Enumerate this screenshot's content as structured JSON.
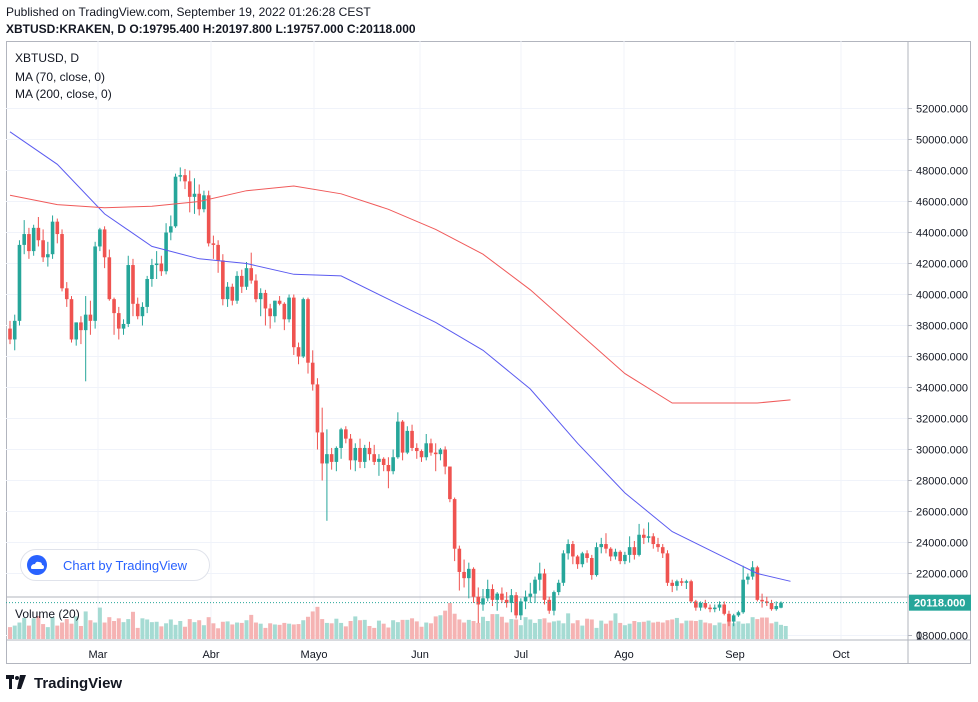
{
  "header": {
    "published": "Published on TradingView.com, September 19, 2022 01:26:28 CEST",
    "ohlc": "XBTUSD:KRAKEN, D O:19795.400 H:20197.800 L:19757.000 C:20118.000"
  },
  "legend": {
    "symbol": "XBTUSD, D",
    "ma70": "MA (70, close, 0)",
    "ma200": "MA (200, close, 0)",
    "volume": "Volume (20)"
  },
  "badge": {
    "label": "Chart by TradingView",
    "icon": "tradingview-cloud-icon"
  },
  "footer": {
    "brand": "TradingView",
    "icon": "tradingview-logo-icon"
  },
  "colors": {
    "up": "#26a69a",
    "down": "#ef5350",
    "ma70": "#5b5bf0",
    "ma200": "#f05a5a",
    "up_volume": "#a5dbd3",
    "down_volume": "#f5b3b3",
    "last_price": "#26a69a",
    "grid": "#f0f3fa"
  },
  "chart_data": {
    "type": "candlestick",
    "ylim": [
      17000,
      52500
    ],
    "y_ticks": [
      "52000.000",
      "50000.000",
      "48000.000",
      "46000.000",
      "44000.000",
      "42000.000",
      "40000.000",
      "38000.000",
      "36000.000",
      "34000.000",
      "32000.000",
      "30000.000",
      "28000.000",
      "26000.000",
      "24000.000",
      "22000.000",
      "18000.000"
    ],
    "x_ticks": [
      "Mar",
      "Abr",
      "Mayo",
      "Jun",
      "Jul",
      "Ago",
      "Sep",
      "Oct"
    ],
    "last_price_label": "20118.000",
    "last_price": 20118,
    "volume_axis_label": "0",
    "ohlc": [
      [
        37800,
        38300,
        36800,
        37100
      ],
      [
        37100,
        38700,
        36400,
        38300
      ],
      [
        38300,
        43500,
        38000,
        43200
      ],
      [
        43200,
        44800,
        42600,
        43900
      ],
      [
        43900,
        44300,
        42300,
        42800
      ],
      [
        42800,
        44500,
        42500,
        44300
      ],
      [
        44300,
        45000,
        43100,
        43500
      ],
      [
        43500,
        44200,
        42100,
        42400
      ],
      [
        42400,
        43400,
        41800,
        42600
      ],
      [
        42600,
        45100,
        42300,
        44700
      ],
      [
        44700,
        44900,
        43300,
        43900
      ],
      [
        43900,
        44200,
        40200,
        40400
      ],
      [
        40400,
        40800,
        39200,
        39700
      ],
      [
        39700,
        39900,
        36900,
        37100
      ],
      [
        37100,
        38200,
        36700,
        38200
      ],
      [
        38200,
        38600,
        36800,
        37700
      ],
      [
        37700,
        39900,
        34400,
        38700
      ],
      [
        38700,
        39600,
        37400,
        38300
      ],
      [
        38300,
        43400,
        37800,
        43100
      ],
      [
        43100,
        44300,
        42800,
        44200
      ],
      [
        44200,
        44400,
        41700,
        42400
      ],
      [
        42400,
        42900,
        39600,
        39700
      ],
      [
        39700,
        39800,
        37400,
        38800
      ],
      [
        38800,
        39200,
        37100,
        37800
      ],
      [
        37800,
        38400,
        37400,
        38100
      ],
      [
        38100,
        42500,
        37900,
        41900
      ],
      [
        41900,
        42300,
        38600,
        39400
      ],
      [
        39400,
        39800,
        38400,
        38600
      ],
      [
        38600,
        39500,
        38000,
        39200
      ],
      [
        39200,
        41200,
        38800,
        41000
      ],
      [
        41000,
        42300,
        40500,
        41900
      ],
      [
        41900,
        42800,
        41000,
        42000
      ],
      [
        42000,
        42500,
        41200,
        41500
      ],
      [
        41500,
        44600,
        41300,
        44000
      ],
      [
        44000,
        45100,
        43500,
        44400
      ],
      [
        44400,
        47800,
        44300,
        47600
      ],
      [
        47600,
        48200,
        47300,
        47700
      ],
      [
        47700,
        48100,
        46800,
        47300
      ],
      [
        47300,
        48000,
        45300,
        46300
      ],
      [
        46300,
        47500,
        45200,
        46500
      ],
      [
        46500,
        47100,
        45100,
        45500
      ],
      [
        45500,
        46700,
        45300,
        46400
      ],
      [
        46400,
        46700,
        43100,
        43300
      ],
      [
        43300,
        43800,
        42300,
        43200
      ],
      [
        43200,
        43500,
        41400,
        42200
      ],
      [
        42200,
        42600,
        39300,
        39700
      ],
      [
        39700,
        40800,
        39200,
        40500
      ],
      [
        40500,
        40700,
        39300,
        39600
      ],
      [
        39600,
        41500,
        39400,
        41200
      ],
      [
        41200,
        41600,
        40100,
        40500
      ],
      [
        40500,
        42100,
        40300,
        41700
      ],
      [
        41700,
        42700,
        40700,
        40900
      ],
      [
        40900,
        41300,
        39500,
        39700
      ],
      [
        39700,
        40400,
        38600,
        40100
      ],
      [
        40100,
        40300,
        38000,
        39100
      ],
      [
        39100,
        39400,
        37800,
        38600
      ],
      [
        38600,
        39600,
        38200,
        39600
      ],
      [
        39600,
        39900,
        39300,
        39400
      ],
      [
        39400,
        39500,
        37700,
        38400
      ],
      [
        38400,
        40000,
        38200,
        39800
      ],
      [
        39800,
        40000,
        36100,
        36600
      ],
      [
        36600,
        36900,
        35500,
        36000
      ],
      [
        36000,
        39800,
        35900,
        39700
      ],
      [
        39700,
        39800,
        34900,
        35600
      ],
      [
        35600,
        36400,
        33800,
        34200
      ],
      [
        34200,
        34600,
        30000,
        31100
      ],
      [
        31100,
        32700,
        28000,
        29100
      ],
      [
        29100,
        31300,
        25400,
        29700
      ],
      [
        29700,
        30100,
        28700,
        29200
      ],
      [
        29200,
        30200,
        28600,
        30100
      ],
      [
        30100,
        31400,
        29400,
        31300
      ],
      [
        31300,
        31500,
        30400,
        30700
      ],
      [
        30700,
        31000,
        28700,
        29300
      ],
      [
        29300,
        30400,
        28600,
        30100
      ],
      [
        30100,
        30700,
        28800,
        29200
      ],
      [
        29200,
        30300,
        28800,
        30100
      ],
      [
        30100,
        30500,
        29300,
        29700
      ],
      [
        29700,
        30300,
        29000,
        29200
      ],
      [
        29200,
        29700,
        28300,
        29400
      ],
      [
        29400,
        29500,
        28600,
        29000
      ],
      [
        29000,
        29500,
        27500,
        28600
      ],
      [
        28600,
        30000,
        28400,
        29500
      ],
      [
        29500,
        32400,
        29400,
        31800
      ],
      [
        31800,
        31900,
        29300,
        29800
      ],
      [
        29800,
        31500,
        29700,
        31200
      ],
      [
        31200,
        31600,
        29900,
        30100
      ],
      [
        30100,
        30400,
        29400,
        29900
      ],
      [
        29900,
        30000,
        29200,
        29500
      ],
      [
        29500,
        31000,
        29300,
        30400
      ],
      [
        30400,
        30700,
        29600,
        29800
      ],
      [
        29800,
        30400,
        28600,
        29700
      ],
      [
        29700,
        30100,
        29300,
        30000
      ],
      [
        30000,
        30200,
        28400,
        28900
      ],
      [
        28900,
        28900,
        26600,
        26800
      ],
      [
        26800,
        26900,
        22800,
        23600
      ],
      [
        23600,
        23800,
        20900,
        22100
      ],
      [
        22100,
        22900,
        21100,
        21700
      ],
      [
        21700,
        22700,
        20400,
        22300
      ],
      [
        22300,
        22400,
        20100,
        20500
      ],
      [
        20500,
        21100,
        18800,
        20000
      ],
      [
        20000,
        21000,
        19600,
        20400
      ],
      [
        20400,
        21600,
        20200,
        21000
      ],
      [
        21000,
        21300,
        19900,
        20300
      ],
      [
        20300,
        20800,
        19600,
        20700
      ],
      [
        20700,
        21100,
        20100,
        20300
      ],
      [
        20300,
        20800,
        19800,
        20100
      ],
      [
        20100,
        21000,
        19500,
        20600
      ],
      [
        20600,
        20800,
        19100,
        19300
      ],
      [
        19300,
        20400,
        19000,
        20200
      ],
      [
        20200,
        20900,
        19700,
        20500
      ],
      [
        20500,
        21400,
        20100,
        20700
      ],
      [
        20700,
        21800,
        20100,
        21600
      ],
      [
        21600,
        22700,
        20900,
        22000
      ],
      [
        22000,
        22300,
        20000,
        20300
      ],
      [
        20300,
        20500,
        19400,
        19600
      ],
      [
        19600,
        20900,
        19300,
        20800
      ],
      [
        20800,
        21600,
        20600,
        21400
      ],
      [
        21400,
        23500,
        21200,
        23300
      ],
      [
        23300,
        24200,
        22900,
        23900
      ],
      [
        23900,
        24100,
        22600,
        23100
      ],
      [
        23100,
        23200,
        22300,
        22600
      ],
      [
        22600,
        23400,
        22400,
        23300
      ],
      [
        23300,
        23500,
        22700,
        23000
      ],
      [
        23000,
        23200,
        21600,
        21900
      ],
      [
        21900,
        24000,
        21800,
        23700
      ],
      [
        23700,
        24300,
        23300,
        23900
      ],
      [
        23900,
        24600,
        23300,
        23600
      ],
      [
        23600,
        23700,
        22800,
        23100
      ],
      [
        23100,
        23600,
        22900,
        23400
      ],
      [
        23400,
        23500,
        22600,
        22800
      ],
      [
        22800,
        23400,
        22600,
        23200
      ],
      [
        23200,
        24400,
        22700,
        23700
      ],
      [
        23700,
        24100,
        22900,
        23200
      ],
      [
        23200,
        25200,
        23100,
        24500
      ],
      [
        24500,
        24900,
        23900,
        24300
      ],
      [
        24300,
        25300,
        24000,
        24400
      ],
      [
        24400,
        24600,
        23600,
        23900
      ],
      [
        23900,
        24300,
        23400,
        23700
      ],
      [
        23700,
        23900,
        23000,
        23300
      ],
      [
        23300,
        23500,
        21200,
        21400
      ],
      [
        21400,
        21600,
        20800,
        21200
      ],
      [
        21200,
        21600,
        20900,
        21500
      ],
      [
        21500,
        21700,
        21200,
        21400
      ],
      [
        21400,
        21600,
        21000,
        21500
      ],
      [
        21500,
        21600,
        20100,
        20200
      ],
      [
        20200,
        20300,
        19600,
        19800
      ],
      [
        19800,
        20200,
        19600,
        20100
      ],
      [
        20100,
        20300,
        19700,
        19800
      ],
      [
        19800,
        20000,
        19500,
        19700
      ],
      [
        19700,
        20000,
        19500,
        19800
      ],
      [
        19800,
        20200,
        19600,
        20000
      ],
      [
        20000,
        20200,
        19300,
        19400
      ],
      [
        19400,
        19600,
        18600,
        18900
      ],
      [
        18900,
        19400,
        18600,
        19300
      ],
      [
        19300,
        19600,
        19200,
        19500
      ],
      [
        19500,
        22500,
        19400,
        21600
      ],
      [
        21600,
        22000,
        21300,
        21800
      ],
      [
        21800,
        22800,
        21600,
        22400
      ],
      [
        22400,
        22500,
        20200,
        20300
      ],
      [
        20300,
        20700,
        19800,
        20200
      ],
      [
        20200,
        20500,
        19900,
        20100
      ],
      [
        20100,
        20300,
        19600,
        19700
      ],
      [
        19700,
        20200,
        19600,
        19900
      ],
      [
        19795,
        20198,
        19757,
        20118
      ]
    ],
    "ma70": [
      [
        0,
        50500
      ],
      [
        10,
        48400
      ],
      [
        20,
        45200
      ],
      [
        30,
        43100
      ],
      [
        40,
        42300
      ],
      [
        50,
        42000
      ],
      [
        60,
        41300
      ],
      [
        70,
        41200
      ],
      [
        80,
        39700
      ],
      [
        90,
        38200
      ],
      [
        100,
        36400
      ],
      [
        110,
        33900
      ],
      [
        120,
        30400
      ],
      [
        130,
        27200
      ],
      [
        140,
        24700
      ],
      [
        150,
        23200
      ],
      [
        158,
        22000
      ],
      [
        165,
        21500
      ]
    ],
    "ma200": [
      [
        0,
        46400
      ],
      [
        10,
        45800
      ],
      [
        20,
        45600
      ],
      [
        30,
        45700
      ],
      [
        40,
        46000
      ],
      [
        50,
        46700
      ],
      [
        60,
        47000
      ],
      [
        70,
        46500
      ],
      [
        80,
        45500
      ],
      [
        90,
        44200
      ],
      [
        100,
        42600
      ],
      [
        110,
        40300
      ],
      [
        120,
        37600
      ],
      [
        130,
        34900
      ],
      [
        140,
        33000
      ],
      [
        158,
        33000
      ],
      [
        165,
        33200
      ]
    ],
    "volume": [
      3.1,
      3.5,
      4.3,
      5.5,
      3.5,
      5.4,
      6.0,
      3.9,
      3.1,
      5.7,
      3.5,
      4.3,
      5.2,
      4.0,
      5.9,
      3.4,
      7.2,
      4.9,
      4.3,
      8.2,
      4.3,
      5.7,
      4.7,
      5.4,
      4.4,
      5.2,
      7.1,
      2.9,
      5.4,
      5.1,
      4.4,
      4.5,
      3.3,
      4.1,
      5.1,
      3.7,
      4.7,
      3.2,
      5.2,
      4.4,
      4.9,
      3.6,
      5.7,
      4.1,
      2.8,
      4.5,
      4.6,
      3.8,
      4.3,
      4.2,
      4.9,
      6.3,
      4.3,
      4.0,
      2.9,
      4.1,
      3.8,
      3.7,
      4.2,
      4.0,
      3.8,
      3.9,
      4.9,
      5.8,
      7.2,
      8.4,
      5.2,
      4.2,
      4.1,
      5.3,
      4.2,
      3.3,
      4.7,
      5.9,
      4.9,
      5.0,
      3.4,
      2.9,
      4.8,
      4.0,
      3.0,
      4.9,
      4.4,
      5.0,
      5.0,
      5.4,
      4.6,
      3.2,
      4.3,
      4.1,
      5.9,
      6.2,
      7.4,
      9.4,
      6.6,
      5.1,
      4.3,
      5.0,
      4.7,
      4.2,
      5.8,
      4.7,
      6.5,
      6.5,
      5.8,
      4.3,
      5.2,
      5.1,
      3.6,
      5.7,
      5.1,
      4.2,
      5.2,
      5.4,
      4.3,
      4.6,
      4.8,
      4.1,
      6.7,
      4.1,
      4.9,
      3.5,
      5.3,
      5.1,
      2.9,
      4.8,
      4.0,
      4.8,
      6.7,
      4.2,
      3.6,
      4.0,
      4.7,
      4.4,
      4.5,
      4.8,
      4.3,
      4.5,
      4.3,
      4.9,
      5.1,
      5.5,
      4.1,
      4.8,
      4.8,
      4.7,
      5.0,
      4.3,
      4.1,
      3.6,
      4.3,
      4.0,
      4.9,
      4.1,
      4.6,
      4.0,
      4.1,
      5.7,
      5.2,
      5.6,
      5.6,
      4.1,
      4.5,
      3.7,
      3.4
    ]
  }
}
